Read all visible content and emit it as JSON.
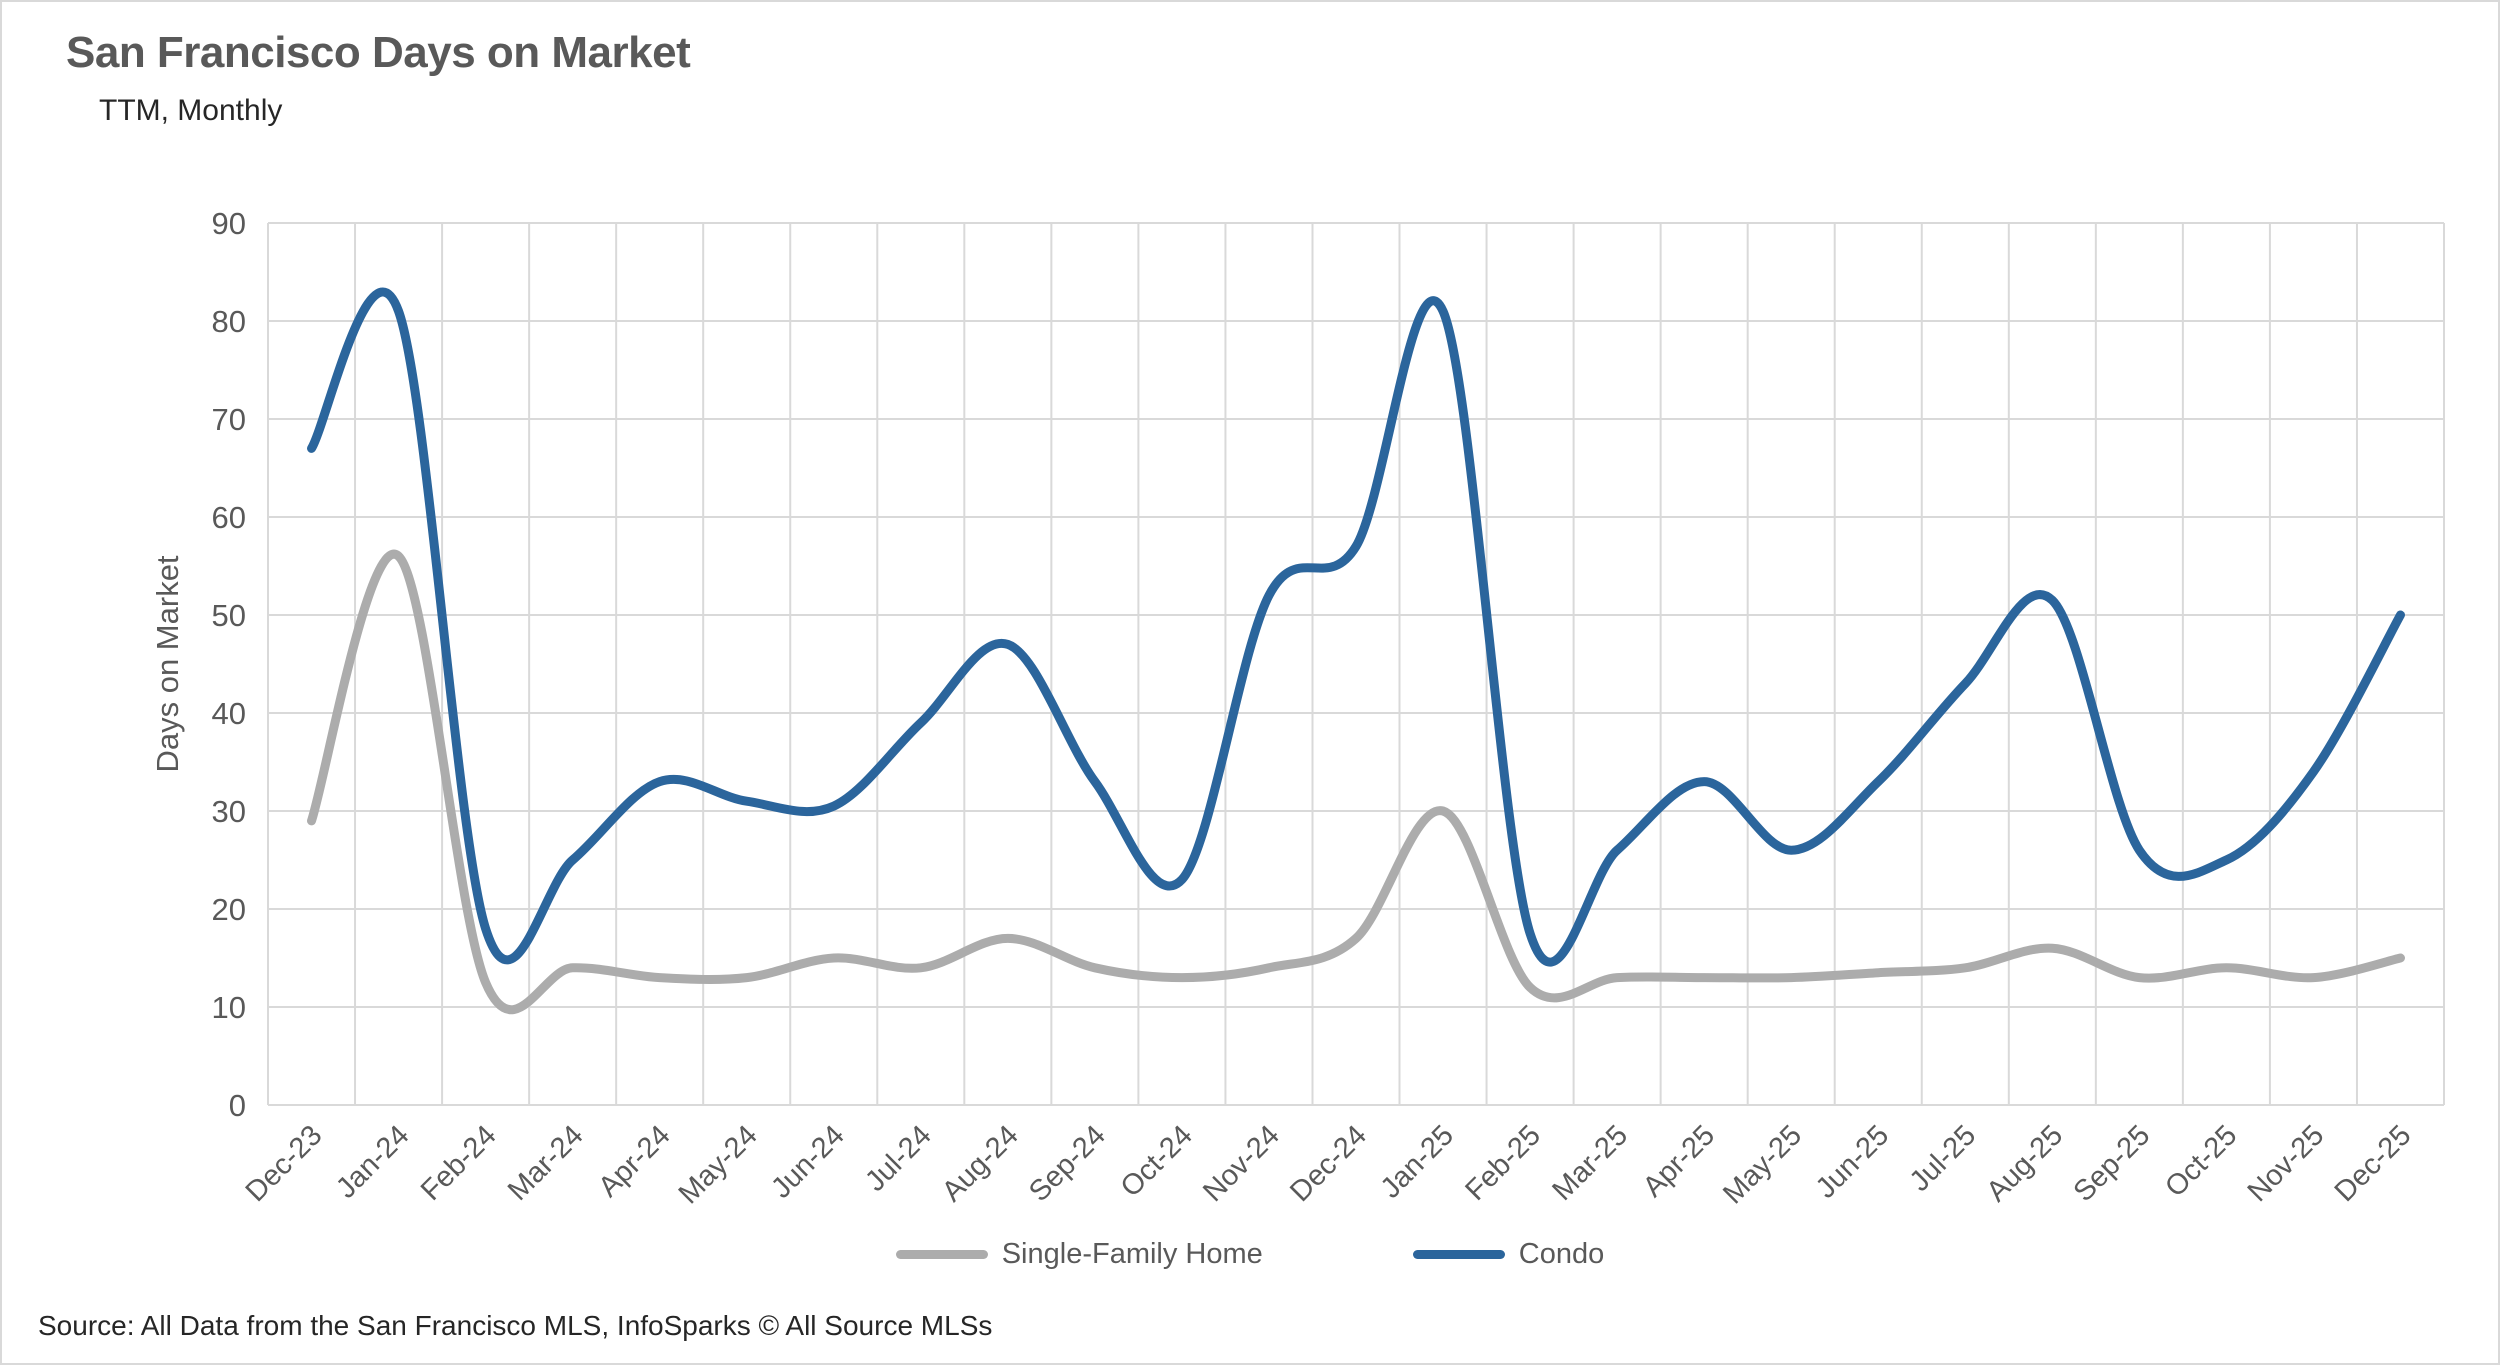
{
  "header": {
    "title": "San Francisco Days on Market",
    "subtitle": "TTM, Monthly"
  },
  "source_note": "Source: All Data from the San Francisco MLS, InfoSparks © All Source MLSs",
  "legend": {
    "items": [
      {
        "label": "Single-Family Home",
        "color": "#acacac"
      },
      {
        "label": "Condo",
        "color": "#2b659c"
      }
    ]
  },
  "chart_data": {
    "type": "line",
    "title": "San Francisco Days on Market",
    "subtitle": "TTM, Monthly",
    "xlabel": "",
    "ylabel": "Days on Market",
    "ylim": [
      0,
      90
    ],
    "yticks": [
      0,
      10,
      20,
      30,
      40,
      50,
      60,
      70,
      80,
      90
    ],
    "grid": true,
    "smooth_lines": true,
    "legend_position": "bottom",
    "categories": [
      "Dec-23",
      "Jan-24",
      "Feb-24",
      "Mar-24",
      "Apr-24",
      "May-24",
      "Jun-24",
      "Jul-24",
      "Aug-24",
      "Sep-24",
      "Oct-24",
      "Nov-24",
      "Dec-24",
      "Jan-25",
      "Feb-25",
      "Mar-25",
      "Apr-25",
      "May-25",
      "Jun-25",
      "Jul-25",
      "Aug-25",
      "Sep-25",
      "Oct-25",
      "Nov-25",
      "Dec-25"
    ],
    "series": [
      {
        "name": "Single-Family Home",
        "color": "#acacac",
        "values": [
          29,
          56,
          12.5,
          14,
          13,
          13,
          15,
          14,
          17,
          14,
          13,
          14,
          17,
          30,
          12,
          13,
          13,
          13,
          13.5,
          14,
          16,
          13,
          14,
          13,
          15
        ]
      },
      {
        "name": "Condo",
        "color": "#2b659c",
        "values": [
          67,
          81,
          18,
          25,
          33,
          31,
          30.5,
          39,
          47,
          33,
          23,
          52,
          57,
          81,
          17.5,
          26,
          33,
          26,
          33,
          43,
          51.5,
          26,
          25,
          34,
          50
        ]
      }
    ],
    "style": {
      "gridline_color": "#d9d9d9",
      "tick_label_color": "#595959",
      "line_width": 9
    }
  }
}
